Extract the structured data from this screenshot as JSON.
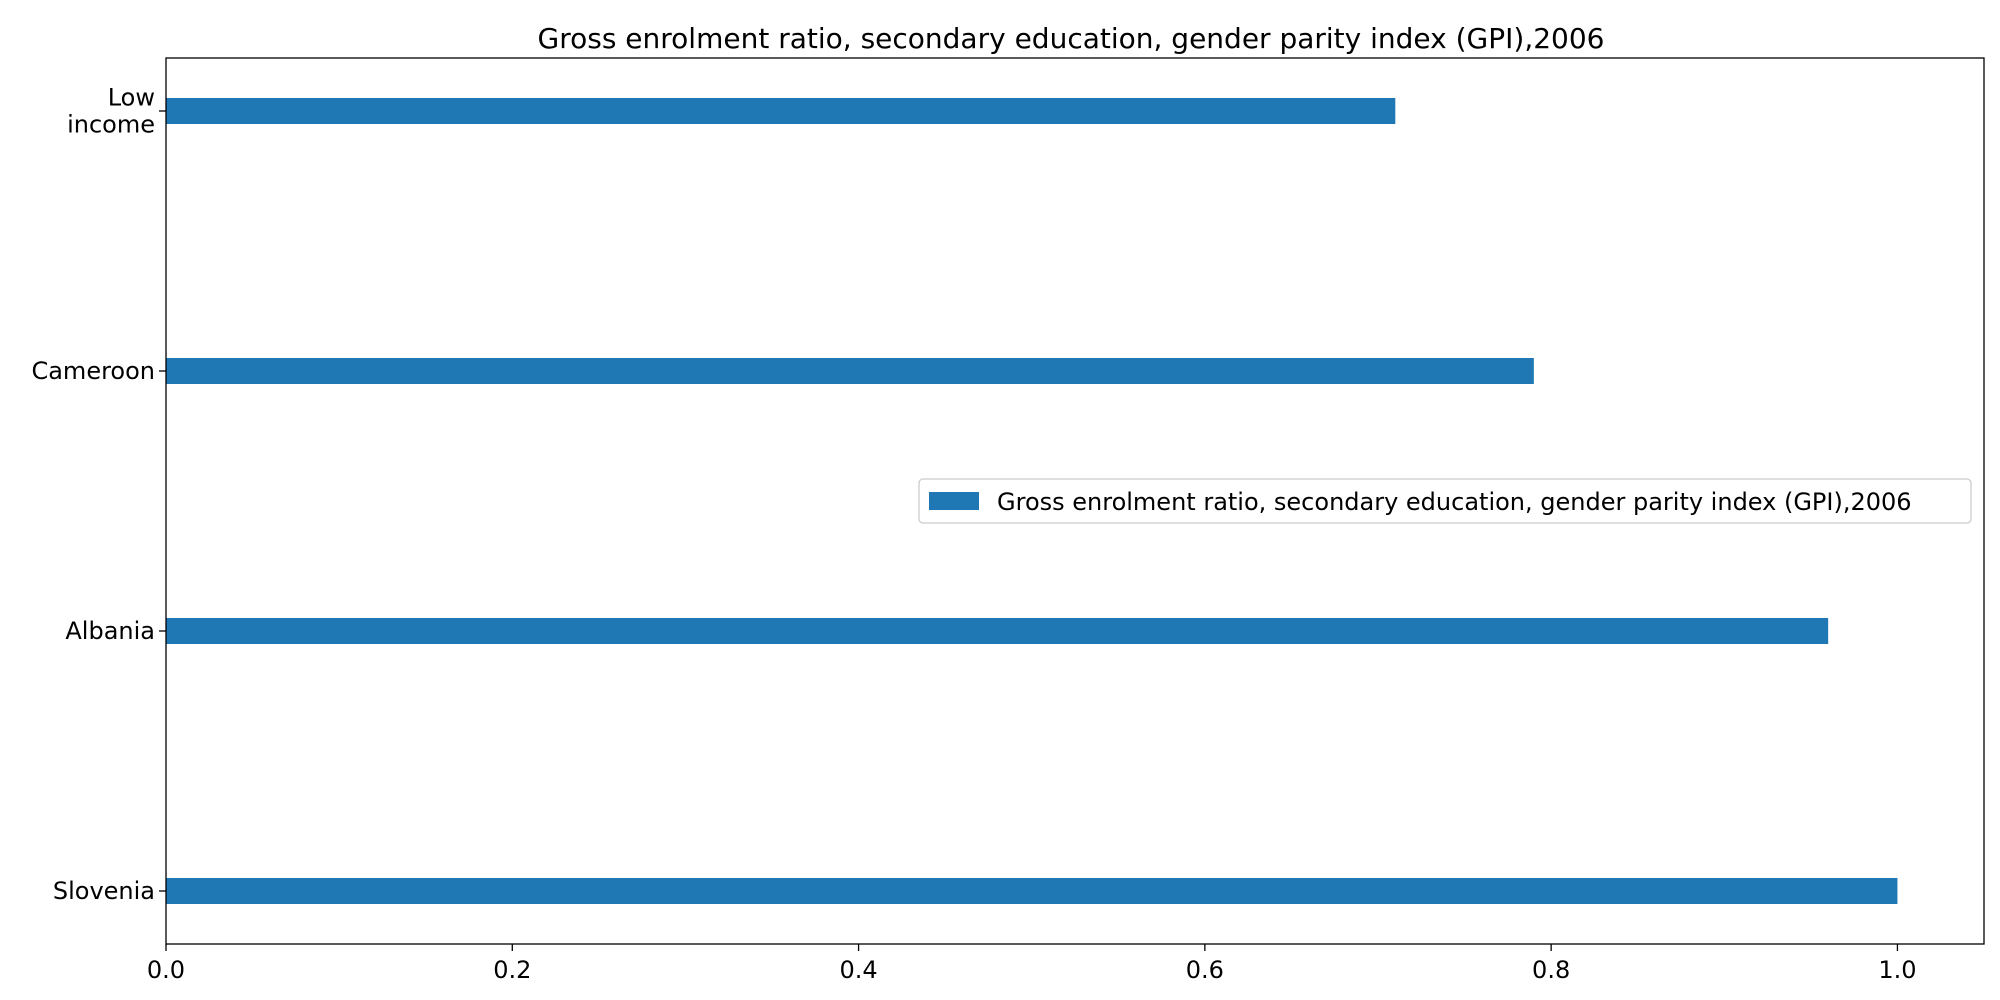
{
  "chart_data": {
    "type": "bar",
    "orientation": "horizontal",
    "title": "Gross enrolment ratio, secondary education, gender parity index (GPI),2006",
    "xlabel": "",
    "ylabel": "",
    "categories": [
      "Low income",
      "Cameroon",
      "Albania",
      "Slovenia"
    ],
    "category_lines": [
      [
        "Low",
        "income"
      ],
      [
        "Cameroon"
      ],
      [
        "Albania"
      ],
      [
        "Slovenia"
      ]
    ],
    "series": [
      {
        "name": "Gross enrolment ratio, secondary education, gender parity index (GPI),2006",
        "values": [
          0.71,
          0.79,
          0.96,
          1.0
        ],
        "color": "#1f77b4"
      }
    ],
    "xlim": [
      0.0,
      1.05
    ],
    "xticks": [
      0.0,
      0.2,
      0.4,
      0.6,
      0.8,
      1.0
    ],
    "xtick_labels": [
      "0.0",
      "0.2",
      "0.4",
      "0.6",
      "0.8",
      "1.0"
    ],
    "grid": false,
    "legend_position": "center-right"
  }
}
